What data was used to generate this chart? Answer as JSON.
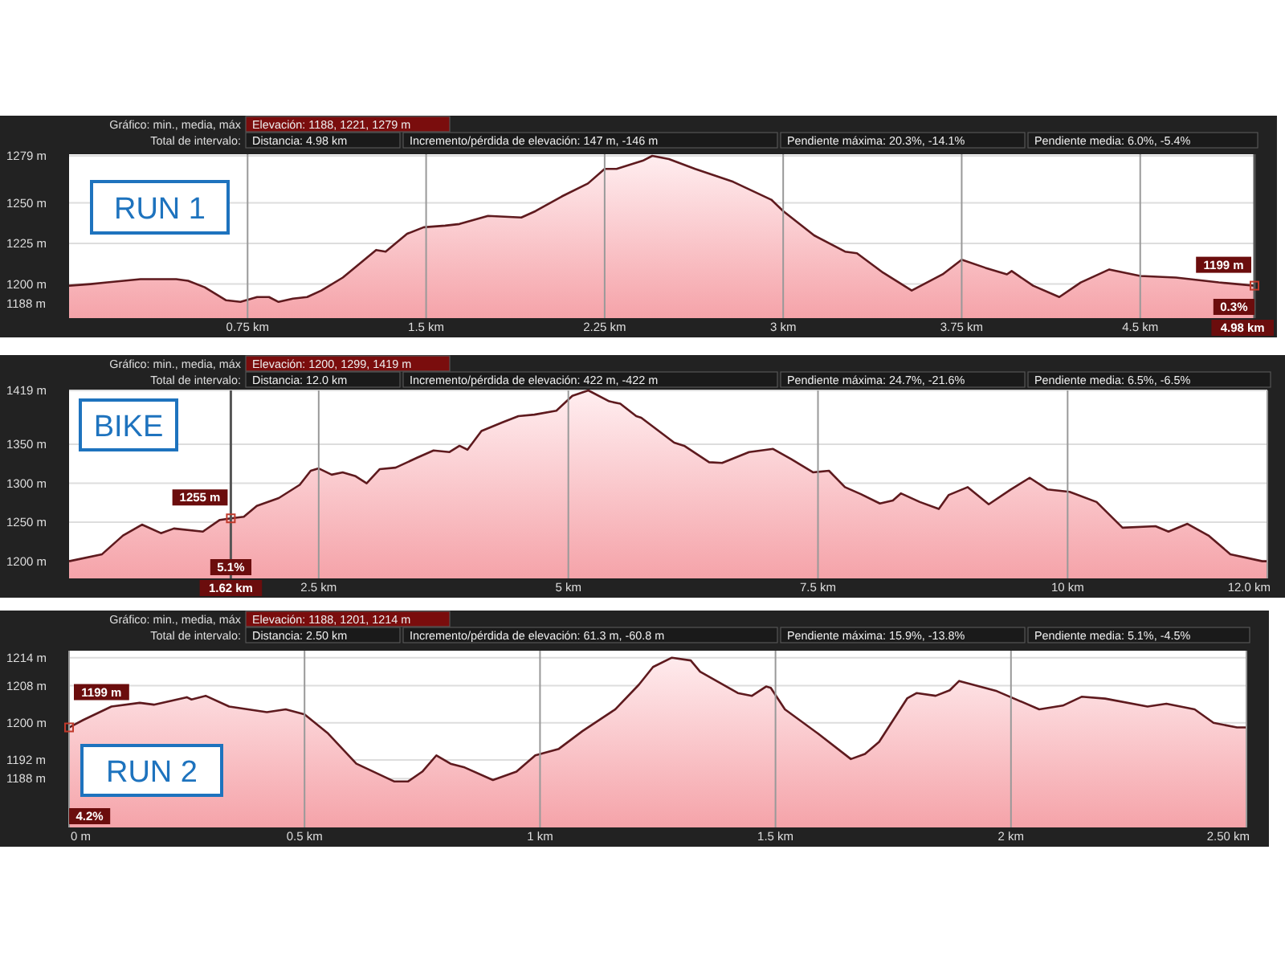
{
  "chart_data": [
    {
      "type": "area",
      "title": "RUN 1",
      "xlim": [
        0,
        4.98
      ],
      "ylim": [
        1179,
        1280
      ],
      "grid": true,
      "xticks": [
        {
          "value": 0.75,
          "label": "0.75 km"
        },
        {
          "value": 1.5,
          "label": "1.5 km"
        },
        {
          "value": 2.25,
          "label": "2.25 km"
        },
        {
          "value": 3,
          "label": "3 km"
        },
        {
          "value": 3.75,
          "label": "3.75 km"
        },
        {
          "value": 4.5,
          "label": "4.5 km"
        }
      ],
      "yticks": [
        {
          "value": 1188,
          "label": "1188 m"
        },
        {
          "value": 1200,
          "label": "1200 m"
        },
        {
          "value": 1225,
          "label": "1225 m"
        },
        {
          "value": 1250,
          "label": "1250 m"
        },
        {
          "value": 1279,
          "label": "1279 m"
        }
      ],
      "series": [
        {
          "color": "#5e1a1e",
          "x": [
            0,
            0.09,
            0.16,
            0.3,
            0.45,
            0.5,
            0.57,
            0.66,
            0.72,
            0.79,
            0.84,
            0.88,
            0.94,
            1.0,
            1.06,
            1.15,
            1.29,
            1.33,
            1.42,
            1.49,
            1.58,
            1.64,
            1.76,
            1.9,
            1.96,
            2.07,
            2.18,
            2.25,
            2.3,
            2.41,
            2.45,
            2.52,
            2.63,
            2.79,
            2.95,
            3.0,
            3.13,
            3.26,
            3.31,
            3.42,
            3.54,
            3.67,
            3.75,
            3.85,
            3.94,
            3.96,
            4.05,
            4.16,
            4.25,
            4.37,
            4.5,
            4.65,
            4.83,
            4.98
          ],
          "values": [
            1199,
            1200,
            1201,
            1203,
            1203,
            1202,
            1198,
            1190,
            1189,
            1192,
            1192,
            1189,
            1191,
            1192,
            1196,
            1204,
            1221,
            1220,
            1231,
            1235,
            1236,
            1237,
            1242,
            1241,
            1245,
            1254,
            1262,
            1271,
            1271,
            1276,
            1279,
            1277,
            1271,
            1263,
            1252,
            1245,
            1230,
            1220,
            1219,
            1207,
            1196,
            1206,
            1215,
            1210,
            1206,
            1208,
            1199,
            1192,
            1201,
            1209,
            1205,
            1204,
            1201,
            1199
          ]
        }
      ],
      "ref_lines": [
        {
          "axis": "x",
          "value": 4.98,
          "label": "4.98 km"
        }
      ],
      "annotations": [
        "Gráfico: min., media, máx",
        "Elevación: 1188, 1221, 1279 m",
        "Total de intervalo:",
        "Distancia: 4.98 km",
        "Incremento/pérdida de elevación: 147 m, -146 m",
        "Pendiente máxima: 20.3%, -14.1%",
        "Pendiente media: 6.0%, -5.4%",
        {
          "text": "1199 m",
          "x": 4.98,
          "y": 1199
        },
        "0.3%"
      ]
    },
    {
      "type": "area",
      "title": "BIKE",
      "xlim": [
        0,
        12
      ],
      "ylim": [
        1178,
        1419
      ],
      "grid": true,
      "xticks": [
        {
          "value": 2.5,
          "label": "2.5 km"
        },
        {
          "value": 5,
          "label": "5 km"
        },
        {
          "value": 7.5,
          "label": "7.5 km"
        },
        {
          "value": 10,
          "label": "10 km"
        },
        {
          "value": 12,
          "label": "12.0 km"
        }
      ],
      "yticks": [
        {
          "value": 1200,
          "label": "1200 m"
        },
        {
          "value": 1250,
          "label": "1250 m"
        },
        {
          "value": 1300,
          "label": "1300 m"
        },
        {
          "value": 1350,
          "label": "1350 m"
        },
        {
          "value": 1419,
          "label": "1419 m"
        }
      ],
      "series": [
        {
          "color": "#5e1a1e",
          "x": [
            0,
            0.33,
            0.54,
            0.73,
            0.92,
            1.05,
            1.34,
            1.51,
            1.62,
            1.75,
            1.88,
            2.1,
            2.31,
            2.42,
            2.5,
            2.63,
            2.74,
            2.87,
            2.98,
            3.11,
            3.27,
            3.49,
            3.65,
            3.81,
            3.91,
            3.99,
            4.13,
            4.34,
            4.5,
            4.66,
            4.88,
            5.04,
            5.2,
            5.41,
            5.52,
            5.68,
            5.73,
            6.06,
            6.16,
            6.41,
            6.54,
            6.81,
            7.05,
            7.23,
            7.45,
            7.61,
            7.77,
            7.93,
            8.12,
            8.25,
            8.33,
            8.52,
            8.71,
            8.81,
            9.0,
            9.21,
            9.43,
            9.62,
            9.8,
            10.02,
            10.29,
            10.55,
            10.88,
            11.01,
            11.2,
            11.41,
            11.63,
            11.95,
            12
          ],
          "values": [
            1200,
            1209,
            1233,
            1247,
            1236,
            1242,
            1238,
            1253,
            1255,
            1257,
            1271,
            1281,
            1298,
            1316,
            1319,
            1311,
            1314,
            1309,
            1300,
            1318,
            1320,
            1333,
            1342,
            1340,
            1348,
            1343,
            1367,
            1378,
            1386,
            1388,
            1393,
            1412,
            1419,
            1405,
            1402,
            1386,
            1384,
            1352,
            1348,
            1327,
            1326,
            1340,
            1344,
            1331,
            1314,
            1316,
            1295,
            1286,
            1274,
            1278,
            1287,
            1276,
            1267,
            1285,
            1295,
            1273,
            1292,
            1307,
            1292,
            1289,
            1276,
            1243,
            1245,
            1238,
            1248,
            1233,
            1209,
            1200,
            1200
          ]
        }
      ],
      "ref_lines": [
        {
          "axis": "x",
          "value": 1.62,
          "label": "1.62 km"
        }
      ],
      "annotations": [
        "Gráfico: min., media, máx",
        "Elevación: 1200, 1299, 1419 m",
        "Total de intervalo:",
        "Distancia: 12.0 km",
        "Incremento/pérdida de elevación: 422 m, -422 m",
        "Pendiente máxima: 24.7%, -21.6%",
        "Pendiente media: 6.5%, -6.5%",
        {
          "text": "1255 m",
          "x": 1.62,
          "y": 1255
        },
        "5.1%"
      ]
    },
    {
      "type": "area",
      "title": "RUN 2",
      "xlim": [
        0,
        2.5
      ],
      "ylim": [
        1177.5,
        1215.5
      ],
      "grid": true,
      "xticks": [
        {
          "value": 0,
          "label": "0 m"
        },
        {
          "value": 0.5,
          "label": "0.5 km"
        },
        {
          "value": 1,
          "label": "1 km"
        },
        {
          "value": 1.5,
          "label": "1.5 km"
        },
        {
          "value": 2,
          "label": "2 km"
        },
        {
          "value": 2.5,
          "label": "2.50 km"
        }
      ],
      "yticks": [
        {
          "value": 1188,
          "label": "1188 m"
        },
        {
          "value": 1192,
          "label": "1192 m"
        },
        {
          "value": 1200,
          "label": "1200 m"
        },
        {
          "value": 1208,
          "label": "1208 m"
        },
        {
          "value": 1214,
          "label": "1214 m"
        }
      ],
      "series": [
        {
          "color": "#5e1a1e",
          "x": [
            0,
            0.03,
            0.09,
            0.15,
            0.18,
            0.25,
            0.26,
            0.29,
            0.34,
            0.42,
            0.46,
            0.5,
            0.55,
            0.61,
            0.69,
            0.72,
            0.75,
            0.78,
            0.81,
            0.84,
            0.9,
            0.95,
            0.99,
            1.04,
            1.09,
            1.16,
            1.21,
            1.24,
            1.28,
            1.32,
            1.34,
            1.42,
            1.45,
            1.48,
            1.49,
            1.52,
            1.59,
            1.66,
            1.69,
            1.72,
            1.78,
            1.8,
            1.84,
            1.87,
            1.89,
            1.97,
            2.06,
            2.11,
            2.15,
            2.2,
            2.29,
            2.33,
            2.39,
            2.43,
            2.48,
            2.5
          ],
          "values": [
            1199,
            1200.6,
            1203.5,
            1204.3,
            1203.9,
            1205.5,
            1205,
            1205.8,
            1203.5,
            1202.3,
            1202.9,
            1201.8,
            1197.7,
            1191.2,
            1187.4,
            1187.4,
            1189.5,
            1193,
            1191.2,
            1190.4,
            1187.7,
            1189.5,
            1193,
            1194.4,
            1198.2,
            1202.9,
            1208.2,
            1212,
            1214,
            1213.4,
            1211,
            1206.4,
            1205.8,
            1207.8,
            1207.5,
            1202.9,
            1197.7,
            1192.2,
            1193.3,
            1195.9,
            1205.3,
            1206.4,
            1205.8,
            1207,
            1209,
            1206.8,
            1202.9,
            1203.7,
            1205.6,
            1205.2,
            1203.5,
            1204.1,
            1202.9,
            1200,
            1199,
            1199
          ]
        }
      ],
      "annotations": [
        "Gráfico: min., media, máx",
        "Elevación: 1188, 1201, 1214 m",
        "Total de intervalo:",
        "Distancia: 2.50 km",
        "Incremento/pérdida de elevación: 61.3 m, -60.8 m",
        "Pendiente máxima: 15.9%, -13.8%",
        "Pendiente media: 5.1%, -4.5%",
        {
          "text": "1199 m",
          "x": 0,
          "y": 1199
        },
        "4.2%"
      ]
    }
  ]
}
